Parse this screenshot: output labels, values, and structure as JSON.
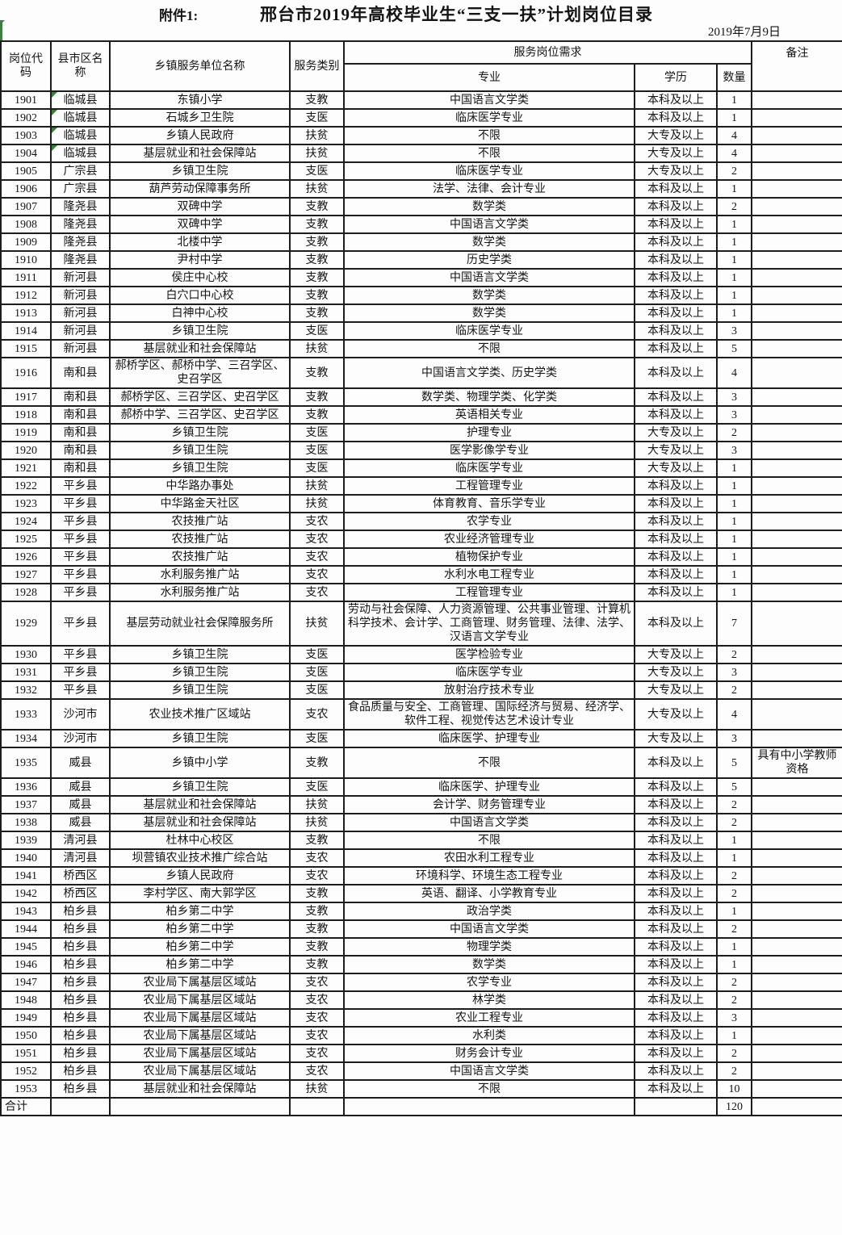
{
  "header": {
    "attachment_label": "附件1:",
    "title": "邢台市2019年高校毕业生“三支一扶”计划岗位目录",
    "date": "2019年7月9日"
  },
  "colors": {
    "border": "#1c1c1c",
    "excel_marker_green": "#3c8040",
    "background": "#fdfdfd"
  },
  "table": {
    "columns": {
      "code": "岗位代码",
      "county": "县市区名称",
      "unit": "乡镇服务单位名称",
      "category": "服务类别",
      "demand_group": "服务岗位需求",
      "major": "专业",
      "education": "学历",
      "qty": "数量",
      "remark": "备注"
    },
    "rows": [
      {
        "code": "1901",
        "county": "临城县",
        "unit": "东镇小学",
        "category": "支教",
        "major": "中国语言文学类",
        "education": "本科及以上",
        "qty": "1",
        "remark": "",
        "marker": true
      },
      {
        "code": "1902",
        "county": "临城县",
        "unit": "石城乡卫生院",
        "category": "支医",
        "major": "临床医学专业",
        "education": "本科及以上",
        "qty": "1",
        "remark": "",
        "marker": true
      },
      {
        "code": "1903",
        "county": "临城县",
        "unit": "乡镇人民政府",
        "category": "扶贫",
        "major": "不限",
        "education": "大专及以上",
        "qty": "4",
        "remark": "",
        "marker": true
      },
      {
        "code": "1904",
        "county": "临城县",
        "unit": "基层就业和社会保障站",
        "category": "扶贫",
        "major": "不限",
        "education": "大专及以上",
        "qty": "4",
        "remark": "",
        "marker": true
      },
      {
        "code": "1905",
        "county": "广宗县",
        "unit": "乡镇卫生院",
        "category": "支医",
        "major": "临床医学专业",
        "education": "大专及以上",
        "qty": "2",
        "remark": ""
      },
      {
        "code": "1906",
        "county": "广宗县",
        "unit": "葫芦劳动保障事务所",
        "category": "扶贫",
        "major": "法学、法律、会计专业",
        "education": "本科及以上",
        "qty": "1",
        "remark": ""
      },
      {
        "code": "1907",
        "county": "隆尧县",
        "unit": "双碑中学",
        "category": "支教",
        "major": "数学类",
        "education": "本科及以上",
        "qty": "2",
        "remark": ""
      },
      {
        "code": "1908",
        "county": "隆尧县",
        "unit": "双碑中学",
        "category": "支教",
        "major": "中国语言文学类",
        "education": "本科及以上",
        "qty": "1",
        "remark": ""
      },
      {
        "code": "1909",
        "county": "隆尧县",
        "unit": "北楼中学",
        "category": "支教",
        "major": "数学类",
        "education": "本科及以上",
        "qty": "1",
        "remark": ""
      },
      {
        "code": "1910",
        "county": "隆尧县",
        "unit": "尹村中学",
        "category": "支教",
        "major": "历史学类",
        "education": "本科及以上",
        "qty": "1",
        "remark": ""
      },
      {
        "code": "1911",
        "county": "新河县",
        "unit": "侯庄中心校",
        "category": "支教",
        "major": "中国语言文学类",
        "education": "本科及以上",
        "qty": "1",
        "remark": ""
      },
      {
        "code": "1912",
        "county": "新河县",
        "unit": "白穴口中心校",
        "category": "支教",
        "major": "数学类",
        "education": "本科及以上",
        "qty": "1",
        "remark": ""
      },
      {
        "code": "1913",
        "county": "新河县",
        "unit": "白神中心校",
        "category": "支教",
        "major": "数学类",
        "education": "本科及以上",
        "qty": "1",
        "remark": ""
      },
      {
        "code": "1914",
        "county": "新河县",
        "unit": "乡镇卫生院",
        "category": "支医",
        "major": "临床医学专业",
        "education": "本科及以上",
        "qty": "3",
        "remark": ""
      },
      {
        "code": "1915",
        "county": "新河县",
        "unit": "基层就业和社会保障站",
        "category": "扶贫",
        "major": "不限",
        "education": "本科及以上",
        "qty": "5",
        "remark": ""
      },
      {
        "code": "1916",
        "county": "南和县",
        "unit": "郝桥学区、郝桥中学、三召学区、史召学区",
        "category": "支教",
        "major": "中国语言文学类、历史学类",
        "education": "本科及以上",
        "qty": "4",
        "remark": ""
      },
      {
        "code": "1917",
        "county": "南和县",
        "unit": "郝桥学区、三召学区、史召学区",
        "category": "支教",
        "major": "数学类、物理学类、化学类",
        "education": "本科及以上",
        "qty": "3",
        "remark": ""
      },
      {
        "code": "1918",
        "county": "南和县",
        "unit": "郝桥中学、三召学区、史召学区",
        "category": "支教",
        "major": "英语相关专业",
        "education": "本科及以上",
        "qty": "3",
        "remark": ""
      },
      {
        "code": "1919",
        "county": "南和县",
        "unit": "乡镇卫生院",
        "category": "支医",
        "major": "护理专业",
        "education": "大专及以上",
        "qty": "2",
        "remark": ""
      },
      {
        "code": "1920",
        "county": "南和县",
        "unit": "乡镇卫生院",
        "category": "支医",
        "major": "医学影像学专业",
        "education": "大专及以上",
        "qty": "3",
        "remark": ""
      },
      {
        "code": "1921",
        "county": "南和县",
        "unit": "乡镇卫生院",
        "category": "支医",
        "major": "临床医学专业",
        "education": "大专及以上",
        "qty": "1",
        "remark": ""
      },
      {
        "code": "1922",
        "county": "平乡县",
        "unit": "中华路办事处",
        "category": "扶贫",
        "major": "工程管理专业",
        "education": "本科及以上",
        "qty": "1",
        "remark": ""
      },
      {
        "code": "1923",
        "county": "平乡县",
        "unit": "中华路金天社区",
        "category": "扶贫",
        "major": "体育教育、音乐学专业",
        "education": "本科及以上",
        "qty": "1",
        "remark": ""
      },
      {
        "code": "1924",
        "county": "平乡县",
        "unit": "农技推广站",
        "category": "支农",
        "major": "农学专业",
        "education": "本科及以上",
        "qty": "1",
        "remark": ""
      },
      {
        "code": "1925",
        "county": "平乡县",
        "unit": "农技推广站",
        "category": "支农",
        "major": "农业经济管理专业",
        "education": "本科及以上",
        "qty": "1",
        "remark": ""
      },
      {
        "code": "1926",
        "county": "平乡县",
        "unit": "农技推广站",
        "category": "支农",
        "major": "植物保护专业",
        "education": "本科及以上",
        "qty": "1",
        "remark": ""
      },
      {
        "code": "1927",
        "county": "平乡县",
        "unit": "水利服务推广站",
        "category": "支农",
        "major": "水利水电工程专业",
        "education": "本科及以上",
        "qty": "1",
        "remark": ""
      },
      {
        "code": "1928",
        "county": "平乡县",
        "unit": "水利服务推广站",
        "category": "支农",
        "major": "工程管理专业",
        "education": "本科及以上",
        "qty": "1",
        "remark": ""
      },
      {
        "code": "1929",
        "county": "平乡县",
        "unit": "基层劳动就业社会保障服务所",
        "category": "扶贫",
        "major": "劳动与社会保障、人力资源管理、公共事业管理、计算机科学技术、会计学、工商管理、财务管理、法律、法学、汉语言文学专业",
        "education": "本科及以上",
        "qty": "7",
        "remark": ""
      },
      {
        "code": "1930",
        "county": "平乡县",
        "unit": "乡镇卫生院",
        "category": "支医",
        "major": "医学检验专业",
        "education": "大专及以上",
        "qty": "2",
        "remark": ""
      },
      {
        "code": "1931",
        "county": "平乡县",
        "unit": "乡镇卫生院",
        "category": "支医",
        "major": "临床医学专业",
        "education": "大专及以上",
        "qty": "3",
        "remark": ""
      },
      {
        "code": "1932",
        "county": "平乡县",
        "unit": "乡镇卫生院",
        "category": "支医",
        "major": "放射治疗技术专业",
        "education": "大专及以上",
        "qty": "2",
        "remark": ""
      },
      {
        "code": "1933",
        "county": "沙河市",
        "unit": "农业技术推广区域站",
        "category": "支农",
        "major": "食品质量与安全、工商管理、国际经济与贸易、经济学、软件工程、视觉传达艺术设计专业",
        "education": "大专及以上",
        "qty": "4",
        "remark": ""
      },
      {
        "code": "1934",
        "county": "沙河市",
        "unit": "乡镇卫生院",
        "category": "支医",
        "major": "临床医学、护理专业",
        "education": "大专及以上",
        "qty": "3",
        "remark": ""
      },
      {
        "code": "1935",
        "county": "威县",
        "unit": "乡镇中小学",
        "category": "支教",
        "major": "不限",
        "education": "本科及以上",
        "qty": "5",
        "remark": "具有中小学教师资格"
      },
      {
        "code": "1936",
        "county": "威县",
        "unit": "乡镇卫生院",
        "category": "支医",
        "major": "临床医学、护理专业",
        "education": "本科及以上",
        "qty": "5",
        "remark": ""
      },
      {
        "code": "1937",
        "county": "威县",
        "unit": "基层就业和社会保障站",
        "category": "扶贫",
        "major": "会计学、财务管理专业",
        "education": "本科及以上",
        "qty": "2",
        "remark": ""
      },
      {
        "code": "1938",
        "county": "威县",
        "unit": "基层就业和社会保障站",
        "category": "扶贫",
        "major": "中国语言文学类",
        "education": "本科及以上",
        "qty": "2",
        "remark": ""
      },
      {
        "code": "1939",
        "county": "清河县",
        "unit": "杜林中心校区",
        "category": "支教",
        "major": "不限",
        "education": "本科及以上",
        "qty": "1",
        "remark": ""
      },
      {
        "code": "1940",
        "county": "清河县",
        "unit": "坝营镇农业技术推广综合站",
        "category": "支农",
        "major": "农田水利工程专业",
        "education": "本科及以上",
        "qty": "1",
        "remark": ""
      },
      {
        "code": "1941",
        "county": "桥西区",
        "unit": "乡镇人民政府",
        "category": "支农",
        "major": "环境科学、环境生态工程专业",
        "education": "本科及以上",
        "qty": "2",
        "remark": ""
      },
      {
        "code": "1942",
        "county": "桥西区",
        "unit": "李村学区、南大郭学区",
        "category": "支教",
        "major": "英语、翻译、小学教育专业",
        "education": "本科及以上",
        "qty": "2",
        "remark": ""
      },
      {
        "code": "1943",
        "county": "柏乡县",
        "unit": "柏乡第二中学",
        "category": "支教",
        "major": "政治学类",
        "education": "本科及以上",
        "qty": "1",
        "remark": ""
      },
      {
        "code": "1944",
        "county": "柏乡县",
        "unit": "柏乡第二中学",
        "category": "支教",
        "major": "中国语言文学类",
        "education": "本科及以上",
        "qty": "2",
        "remark": ""
      },
      {
        "code": "1945",
        "county": "柏乡县",
        "unit": "柏乡第二中学",
        "category": "支教",
        "major": "物理学类",
        "education": "本科及以上",
        "qty": "1",
        "remark": ""
      },
      {
        "code": "1946",
        "county": "柏乡县",
        "unit": "柏乡第二中学",
        "category": "支教",
        "major": "数学类",
        "education": "本科及以上",
        "qty": "1",
        "remark": ""
      },
      {
        "code": "1947",
        "county": "柏乡县",
        "unit": "农业局下属基层区域站",
        "category": "支农",
        "major": "农学专业",
        "education": "本科及以上",
        "qty": "2",
        "remark": ""
      },
      {
        "code": "1948",
        "county": "柏乡县",
        "unit": "农业局下属基层区域站",
        "category": "支农",
        "major": "林学类",
        "education": "本科及以上",
        "qty": "2",
        "remark": ""
      },
      {
        "code": "1949",
        "county": "柏乡县",
        "unit": "农业局下属基层区域站",
        "category": "支农",
        "major": "农业工程专业",
        "education": "本科及以上",
        "qty": "3",
        "remark": ""
      },
      {
        "code": "1950",
        "county": "柏乡县",
        "unit": "农业局下属基层区域站",
        "category": "支农",
        "major": "水利类",
        "education": "本科及以上",
        "qty": "1",
        "remark": ""
      },
      {
        "code": "1951",
        "county": "柏乡县",
        "unit": "农业局下属基层区域站",
        "category": "支农",
        "major": "财务会计专业",
        "education": "本科及以上",
        "qty": "2",
        "remark": ""
      },
      {
        "code": "1952",
        "county": "柏乡县",
        "unit": "农业局下属基层区域站",
        "category": "支农",
        "major": "中国语言文学类",
        "education": "本科及以上",
        "qty": "2",
        "remark": ""
      },
      {
        "code": "1953",
        "county": "柏乡县",
        "unit": "基层就业和社会保障站",
        "category": "扶贫",
        "major": "不限",
        "education": "本科及以上",
        "qty": "10",
        "remark": ""
      }
    ],
    "total": {
      "label": "合计",
      "qty": "120"
    }
  }
}
